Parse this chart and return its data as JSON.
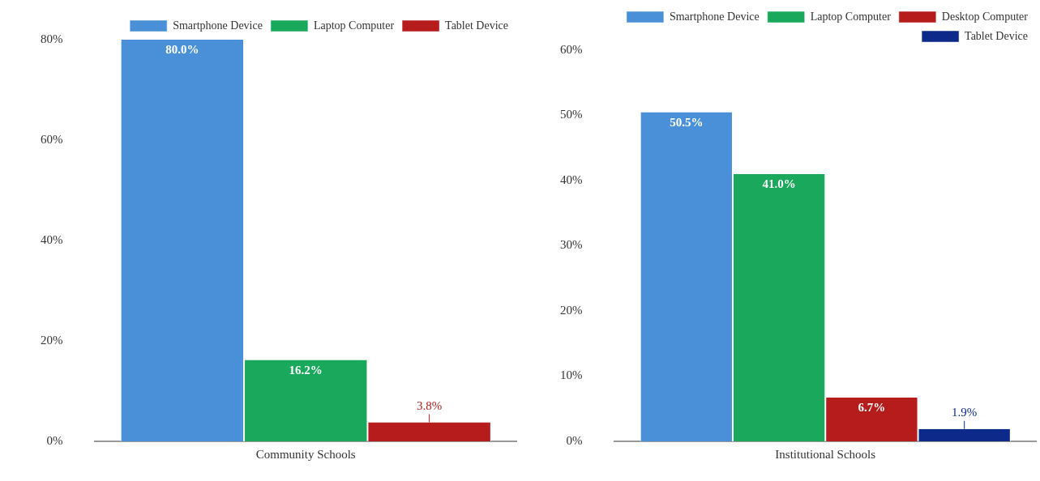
{
  "chart_data": [
    {
      "type": "bar",
      "categories": [
        "Community Schools"
      ],
      "series": [
        {
          "name": "Smartphone Device",
          "color": "#4a90d9",
          "values": [
            80.0
          ],
          "value_labels": [
            "80.0%"
          ]
        },
        {
          "name": "Laptop Computer",
          "color": "#1aa85c",
          "values": [
            16.2
          ],
          "value_labels": [
            "16.2%"
          ]
        },
        {
          "name": "Tablet Device",
          "color": "#b71c1c",
          "values": [
            3.8
          ],
          "value_labels": [
            "3.8%"
          ]
        }
      ],
      "ylim": [
        0,
        80
      ],
      "yticks": [
        {
          "value": 0,
          "label": "0%"
        },
        {
          "value": 20,
          "label": "20%"
        },
        {
          "value": 40,
          "label": "40%"
        },
        {
          "value": 60,
          "label": "60%"
        },
        {
          "value": 80,
          "label": "80%"
        }
      ],
      "grid": false,
      "legend": "top right"
    },
    {
      "type": "bar",
      "categories": [
        "Institutional Schools"
      ],
      "series": [
        {
          "name": "Smartphone Device",
          "color": "#4a90d9",
          "values": [
            50.5
          ],
          "value_labels": [
            "50.5%"
          ]
        },
        {
          "name": "Laptop Computer",
          "color": "#1aa85c",
          "values": [
            41.0
          ],
          "value_labels": [
            "41.0%"
          ]
        },
        {
          "name": "Desktop Computer",
          "color": "#b71c1c",
          "values": [
            6.7
          ],
          "value_labels": [
            "6.7%"
          ]
        },
        {
          "name": "Tablet Device",
          "color": "#0d2a8a",
          "values": [
            1.9
          ],
          "value_labels": [
            "1.9%"
          ]
        }
      ],
      "ylim": [
        0,
        60
      ],
      "yticks": [
        {
          "value": 0,
          "label": "0%"
        },
        {
          "value": 10,
          "label": "10%"
        },
        {
          "value": 20,
          "label": "20%"
        },
        {
          "value": 30,
          "label": "30%"
        },
        {
          "value": 40,
          "label": "40%"
        },
        {
          "value": 50,
          "label": "50%"
        },
        {
          "value": 60,
          "label": "60%"
        }
      ],
      "grid": false,
      "legend": "top right"
    }
  ]
}
